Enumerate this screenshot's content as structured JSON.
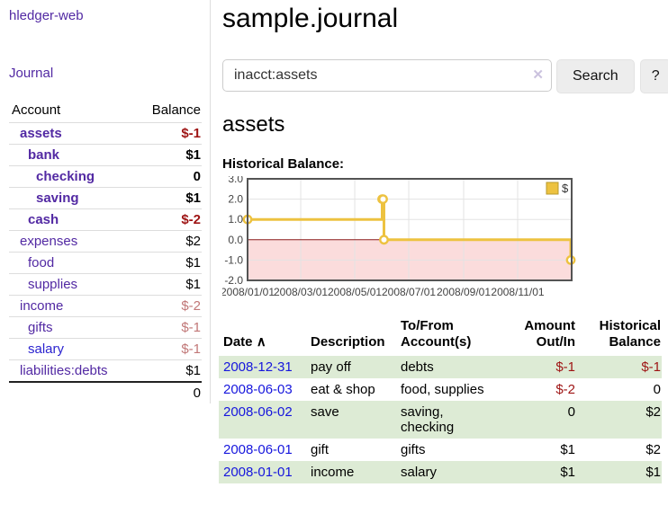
{
  "sidebar": {
    "app_title": "hledger-web",
    "journal_label": "Journal",
    "accounts": {
      "header_account": "Account",
      "header_balance": "Balance",
      "rows": [
        {
          "name": "assets",
          "depth": 1,
          "bold": true,
          "balance": "$-1",
          "tone": "neg-strong"
        },
        {
          "name": "bank",
          "depth": 2,
          "bold": true,
          "balance": "$1",
          "tone": "pos"
        },
        {
          "name": "checking",
          "depth": 3,
          "bold": true,
          "balance": "0",
          "tone": "pos"
        },
        {
          "name": "saving",
          "depth": 3,
          "bold": true,
          "balance": "$1",
          "tone": "pos"
        },
        {
          "name": "cash",
          "depth": 2,
          "bold": true,
          "balance": "$-2",
          "tone": "neg-strong"
        },
        {
          "name": "expenses",
          "depth": 1,
          "bold": false,
          "balance": "$2",
          "tone": "pos"
        },
        {
          "name": "food",
          "depth": 2,
          "bold": false,
          "balance": "$1",
          "tone": "pos"
        },
        {
          "name": "supplies",
          "depth": 2,
          "bold": false,
          "balance": "$1",
          "tone": "pos"
        },
        {
          "name": "income",
          "depth": 1,
          "bold": false,
          "balance": "$-2",
          "tone": "neg-soft"
        },
        {
          "name": "gifts",
          "depth": 2,
          "bold": false,
          "balance": "$-1",
          "tone": "neg-soft"
        },
        {
          "name": "salary",
          "depth": 2,
          "bold": false,
          "balance": "$-1",
          "tone": "neg-soft",
          "link_style": "blue"
        },
        {
          "name": "liabilities:debts",
          "depth": 1,
          "bold": false,
          "balance": "$1",
          "tone": "pos"
        }
      ],
      "total": "0"
    }
  },
  "main": {
    "title": "sample.journal",
    "search": {
      "value": "inacct:assets",
      "clear_icon": "✕",
      "search_label": "Search",
      "help_label": "?"
    },
    "account_heading": "assets",
    "chart_label": "Historical Balance:"
  },
  "chart_data": {
    "type": "line",
    "step": true,
    "title": "Historical Balance",
    "series": [
      {
        "name": "$",
        "color": "#edc240",
        "points": [
          [
            "2008-01-01",
            1
          ],
          [
            "2008-06-01",
            2
          ],
          [
            "2008-06-02",
            2
          ],
          [
            "2008-06-03",
            0
          ],
          [
            "2008-12-31",
            -1
          ]
        ]
      }
    ],
    "x_range": [
      "2008-01-01",
      "2009-01-01"
    ],
    "y_range": [
      -2,
      3
    ],
    "y_ticks": [
      {
        "v": 3,
        "label": "3.0"
      },
      {
        "v": 2,
        "label": "2.0"
      },
      {
        "v": 1,
        "label": "1.0"
      },
      {
        "v": 0,
        "label": "0.0"
      },
      {
        "v": -1,
        "label": "-1.0"
      },
      {
        "v": -2,
        "label": "-2.0"
      }
    ],
    "x_ticks": [
      {
        "d": "2008-01-01",
        "label": "2008/01/01"
      },
      {
        "d": "2008-03-01",
        "label": "2008/03/01"
      },
      {
        "d": "2008-05-01",
        "label": "2008/05/01"
      },
      {
        "d": "2008-07-01",
        "label": "2008/07/01"
      },
      {
        "d": "2008-09-01",
        "label": "2008/09/01"
      },
      {
        "d": "2008-11-01",
        "label": "2008/11/01"
      }
    ],
    "legend": {
      "label": "$",
      "position": "top-right"
    },
    "grid": true,
    "grid_color": "#e3e3e3",
    "border_color": "#545454",
    "zero_line_color": "#8b1a1a",
    "negative_fill": "#fbdcdc"
  },
  "register": {
    "sort_icon": "∧",
    "headers": {
      "date": "Date",
      "description": "Description",
      "accounts_l1": "To/From",
      "accounts_l2": "Account(s)",
      "amount_l1": "Amount",
      "amount_l2": "Out/In",
      "balance_l1": "Historical",
      "balance_l2": "Balance"
    },
    "rows": [
      {
        "date": "2008-12-31",
        "description": "pay off",
        "accounts": "debts",
        "amount": "$-1",
        "amount_tone": "neg-strong",
        "balance": "$-1",
        "balance_tone": "neg-strong",
        "shaded": true
      },
      {
        "date": "2008-06-03",
        "description": "eat & shop",
        "accounts": "food, supplies",
        "amount": "$-2",
        "amount_tone": "neg-strong",
        "balance": "0",
        "balance_tone": "pos",
        "shaded": false
      },
      {
        "date": "2008-06-02",
        "description": "save",
        "accounts": "saving, checking",
        "amount": "0",
        "amount_tone": "pos",
        "balance": "$2",
        "balance_tone": "pos",
        "shaded": true
      },
      {
        "date": "2008-06-01",
        "description": "gift",
        "accounts": "gifts",
        "amount": "$1",
        "amount_tone": "pos",
        "balance": "$2",
        "balance_tone": "pos",
        "shaded": false
      },
      {
        "date": "2008-01-01",
        "description": "income",
        "accounts": "salary",
        "amount": "$1",
        "amount_tone": "pos",
        "balance": "$1",
        "balance_tone": "pos",
        "shaded": true
      }
    ]
  },
  "colors": {
    "link_purple": "#5229a3",
    "link_blue": "#2b23cf",
    "date_link_blue": "#1616dd",
    "negative_strong": "#9e1414",
    "negative_soft": "#c17777",
    "row_shade_green": "#ddebd5",
    "series_yellow": "#edc240"
  }
}
